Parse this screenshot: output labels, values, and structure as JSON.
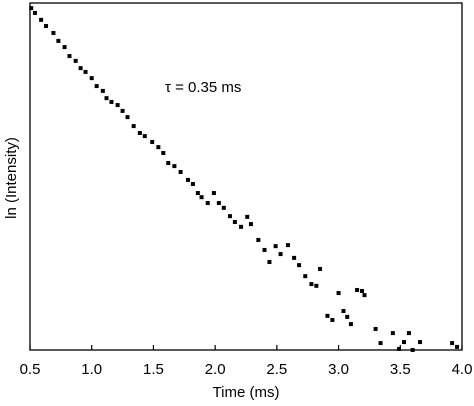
{
  "chart_data": {
    "type": "scatter",
    "annotation": "τ = 0.35 ms",
    "x_label": "Time (ms)",
    "y_label": "ln (Intensity)",
    "color": "#000000",
    "xlim": [
      0.5,
      4.0
    ],
    "ylim": [
      0,
      100
    ],
    "xticks": [
      0.5,
      {
        "value": 1.0,
        "label": "1.0"
      },
      1.5,
      {
        "value": 2.0,
        "label": "2.0"
      },
      2.5,
      {
        "value": 3.0,
        "label": "3.0"
      },
      3.5,
      {
        "value": 4.0,
        "label": "4.0"
      }
    ],
    "x": [
      0.51,
      0.54,
      0.59,
      0.63,
      0.69,
      0.73,
      0.78,
      0.82,
      0.87,
      0.91,
      0.95,
      1.0,
      1.04,
      1.09,
      1.12,
      1.16,
      1.21,
      1.25,
      1.29,
      1.34,
      1.39,
      1.43,
      1.49,
      1.54,
      1.58,
      1.62,
      1.67,
      1.72,
      1.78,
      1.82,
      1.86,
      1.89,
      1.94,
      1.99,
      2.03,
      2.07,
      2.12,
      2.16,
      2.21,
      2.26,
      2.29,
      2.35,
      2.4,
      2.44,
      2.49,
      2.53,
      2.59,
      2.64,
      2.68,
      2.73,
      2.78,
      2.82,
      2.85,
      2.91,
      2.95,
      3.0,
      3.04,
      3.07,
      3.1,
      3.15,
      3.19,
      3.21,
      3.3,
      3.34,
      3.44,
      3.49,
      3.53,
      3.57,
      3.6,
      3.66,
      3.92,
      3.96
    ],
    "values": [
      99.1,
      97.7,
      95.7,
      93.9,
      91.9,
      89.6,
      87.8,
      85.2,
      83.8,
      81.7,
      80.6,
      78.8,
      76.5,
      75.1,
      73.0,
      71.9,
      71.0,
      69.3,
      67.5,
      64.9,
      62.9,
      62.0,
      60.3,
      58.8,
      57.1,
      54.2,
      53.3,
      51.6,
      49.3,
      48.1,
      45.5,
      44.3,
      42.6,
      45.5,
      42.6,
      41.2,
      38.8,
      37.1,
      35.7,
      38.6,
      36.5,
      31.9,
      29.0,
      25.5,
      30.1,
      27.8,
      30.4,
      26.7,
      24.6,
      21.4,
      19.1,
      18.6,
      23.5,
      9.9,
      8.7,
      16.5,
      11.3,
      9.6,
      7.5,
      17.4,
      17.1,
      15.9,
      6.1,
      2.0,
      4.9,
      0.3,
      2.3,
      4.9,
      0.0,
      2.3,
      2.0,
      0.9
    ]
  }
}
